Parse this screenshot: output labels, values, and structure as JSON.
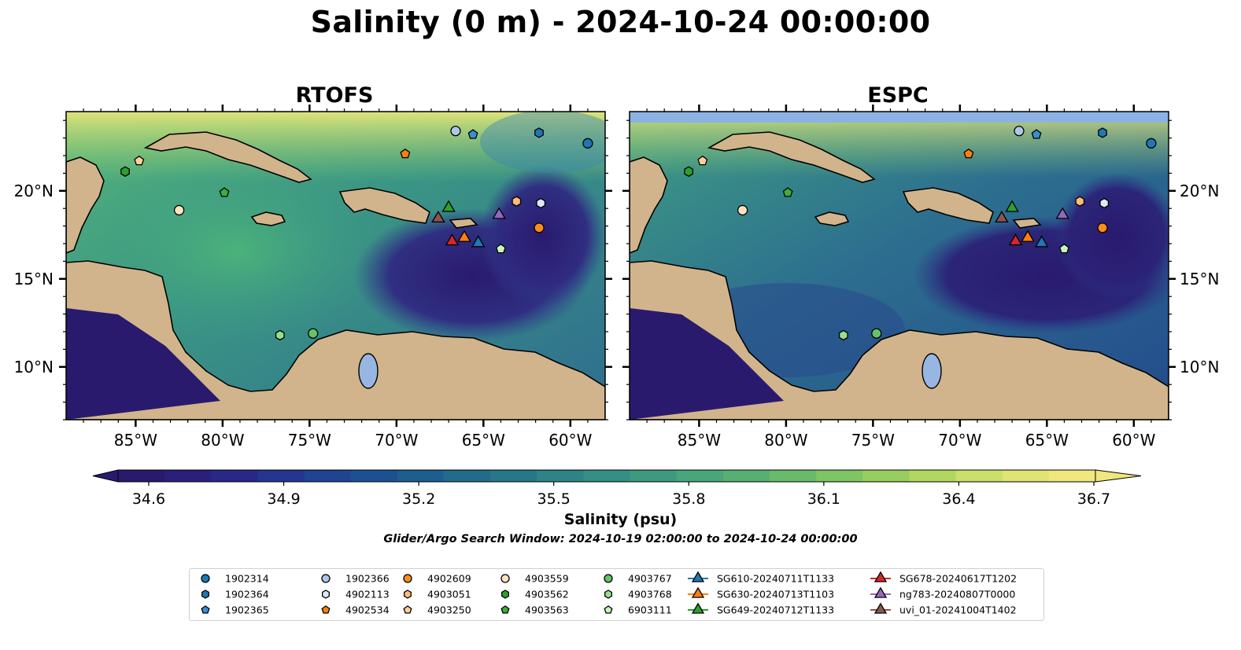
{
  "title": "Salinity (0 m) - 2024-10-24 00:00:00",
  "panels": [
    {
      "id": "rtofs",
      "title": "RTOFS"
    },
    {
      "id": "espc",
      "title": "ESPC"
    }
  ],
  "map_extent": {
    "lon": [
      -89,
      -58
    ],
    "lat": [
      7,
      24.5
    ]
  },
  "lon_ticks": [
    "85°W",
    "80°W",
    "75°W",
    "70°W",
    "65°W",
    "60°W"
  ],
  "lon_tick_values": [
    -85,
    -80,
    -75,
    -70,
    -65,
    -60
  ],
  "lat_ticks": [
    "20°N",
    "15°N",
    "10°N"
  ],
  "lat_tick_values": [
    20,
    15,
    10
  ],
  "colorbar": {
    "ticks": [
      "34.6",
      "34.9",
      "35.2",
      "35.5",
      "35.8",
      "36.1",
      "36.4",
      "36.7"
    ],
    "range": [
      34.6,
      36.7
    ],
    "extend": "both",
    "colormap": "haline-like",
    "label": "Salinity (psu)"
  },
  "search_window": "Glider/Argo Search Window: 2024-10-19 02:00:00 to 2024-10-24 00:00:00",
  "colors": {
    "land": "#d2b48c",
    "lakes": "#97b6e1",
    "espc_nodata": "#8cb2e4",
    "low_salinity": "#2a1a6e",
    "high_salinity": "#f0e77d"
  },
  "legend": {
    "columns": [
      [
        {
          "label": "1902314",
          "marker": "circle",
          "color": "#1f77b4"
        },
        {
          "label": "1902364",
          "marker": "hexagon",
          "color": "#1f77b4"
        },
        {
          "label": "1902365",
          "marker": "pentagon",
          "color": "#3b8ed0"
        }
      ],
      [
        {
          "label": "1902366",
          "marker": "circle",
          "color": "#aec7e8"
        },
        {
          "label": "4902113",
          "marker": "hexagon",
          "color": "#dce9f7"
        },
        {
          "label": "4902534",
          "marker": "pentagon",
          "color": "#ff7f0e"
        }
      ],
      [
        {
          "label": "4902609",
          "marker": "circle",
          "color": "#ff8c1a"
        },
        {
          "label": "4903051",
          "marker": "hexagon",
          "color": "#ffbb78"
        },
        {
          "label": "4903250",
          "marker": "pentagon",
          "color": "#ffcf9a"
        }
      ],
      [
        {
          "label": "4903559",
          "marker": "circle",
          "color": "#ffe2c2"
        },
        {
          "label": "4903562",
          "marker": "hexagon",
          "color": "#2ca02c"
        },
        {
          "label": "4903563",
          "marker": "pentagon",
          "color": "#3cae3c"
        }
      ],
      [
        {
          "label": "4903767",
          "marker": "circle",
          "color": "#66c266"
        },
        {
          "label": "4903768",
          "marker": "hexagon",
          "color": "#98df8a"
        },
        {
          "label": "6903111",
          "marker": "pentagon",
          "color": "#c7f3bd"
        }
      ],
      [
        {
          "label": "SG610-20240711T1133",
          "marker": "triangle",
          "color": "#1f77b4"
        },
        {
          "label": "SG630-20240713T1103",
          "marker": "triangle",
          "color": "#ff7f0e"
        },
        {
          "label": "SG649-20240712T1133",
          "marker": "triangle",
          "color": "#2ca02c"
        }
      ],
      [
        {
          "label": "SG678-20240617T1202",
          "marker": "triangle",
          "color": "#d62728"
        },
        {
          "label": "ng783-20240807T0000",
          "marker": "triangle",
          "color": "#9467bd"
        },
        {
          "label": "uvi_01-20241004T1402",
          "marker": "triangle",
          "color": "#8c564b"
        }
      ]
    ]
  },
  "observations": [
    {
      "id": "1902314",
      "marker": "circle",
      "color": "#1f77b4",
      "lon": -59.0,
      "lat": 22.7
    },
    {
      "id": "1902364",
      "marker": "hexagon",
      "color": "#1f77b4",
      "lon": -61.8,
      "lat": 23.3
    },
    {
      "id": "1902365",
      "marker": "pentagon",
      "color": "#3b8ed0",
      "lon": -65.6,
      "lat": 23.2
    },
    {
      "id": "1902366",
      "marker": "circle",
      "color": "#aec7e8",
      "lon": -66.6,
      "lat": 23.4
    },
    {
      "id": "4902113",
      "marker": "hexagon",
      "color": "#dce9f7",
      "lon": -61.7,
      "lat": 19.3
    },
    {
      "id": "4902534",
      "marker": "pentagon",
      "color": "#ff7f0e",
      "lon": -69.5,
      "lat": 22.1
    },
    {
      "id": "4902609",
      "marker": "circle",
      "color": "#ff8c1a",
      "lon": -61.8,
      "lat": 17.9
    },
    {
      "id": "4903051",
      "marker": "hexagon",
      "color": "#ffbb78",
      "lon": -63.1,
      "lat": 19.4
    },
    {
      "id": "4903250",
      "marker": "pentagon",
      "color": "#ffcf9a",
      "lon": -84.8,
      "lat": 21.7
    },
    {
      "id": "4903559",
      "marker": "circle",
      "color": "#ffe2c2",
      "lon": -82.5,
      "lat": 18.9
    },
    {
      "id": "4903562",
      "marker": "hexagon",
      "color": "#2ca02c",
      "lon": -85.6,
      "lat": 21.1
    },
    {
      "id": "4903563",
      "marker": "pentagon",
      "color": "#3cae3c",
      "lon": -79.9,
      "lat": 19.9
    },
    {
      "id": "4903767",
      "marker": "circle",
      "color": "#66c266",
      "lon": -74.8,
      "lat": 11.9
    },
    {
      "id": "4903768",
      "marker": "hexagon",
      "color": "#98df8a",
      "lon": -76.7,
      "lat": 11.8
    },
    {
      "id": "6903111",
      "marker": "pentagon",
      "color": "#c7f3bd",
      "lon": -64.0,
      "lat": 16.7
    },
    {
      "id": "SG610-20240711T1133",
      "marker": "triangle",
      "color": "#1f77b4",
      "lon": -65.3,
      "lat": 17.1
    },
    {
      "id": "SG630-20240713T1103",
      "marker": "triangle",
      "color": "#ff7f0e",
      "lon": -66.1,
      "lat": 17.4
    },
    {
      "id": "SG649-20240712T1133",
      "marker": "triangle",
      "color": "#2ca02c",
      "lon": -67.0,
      "lat": 19.1
    },
    {
      "id": "SG678-20240617T1202",
      "marker": "triangle",
      "color": "#d62728",
      "lon": -66.8,
      "lat": 17.2
    },
    {
      "id": "ng783-20240807T0000",
      "marker": "triangle",
      "color": "#9467bd",
      "lon": -64.1,
      "lat": 18.7
    },
    {
      "id": "uvi_01-20241004T1402",
      "marker": "triangle",
      "color": "#8c564b",
      "lon": -67.6,
      "lat": 18.5
    }
  ]
}
